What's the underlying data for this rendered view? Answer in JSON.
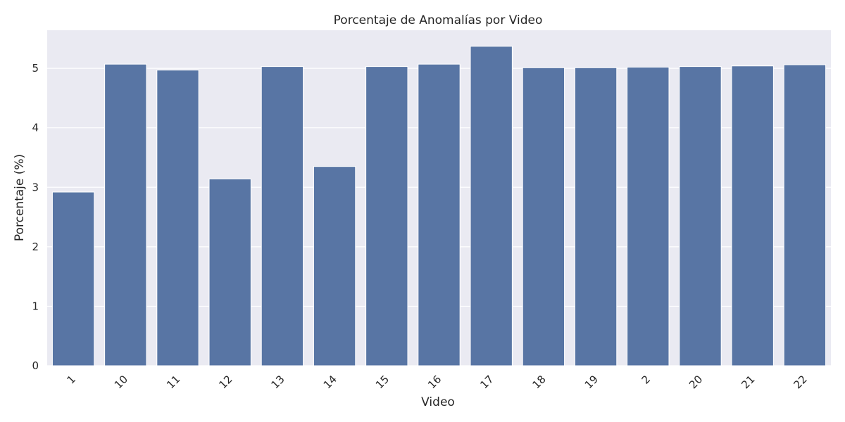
{
  "chart_data": {
    "type": "bar",
    "title": "Porcentaje de Anomalías por Video",
    "xlabel": "Video",
    "ylabel": "Porcentaje (%)",
    "categories": [
      "1",
      "10",
      "11",
      "12",
      "13",
      "14",
      "15",
      "16",
      "17",
      "18",
      "19",
      "2",
      "20",
      "21",
      "22"
    ],
    "values": [
      2.92,
      5.07,
      4.97,
      3.14,
      5.03,
      3.35,
      5.03,
      5.07,
      5.37,
      5.01,
      5.01,
      5.02,
      5.03,
      5.04,
      5.06
    ],
    "ylim": [
      0,
      5.64
    ],
    "yticks": [
      0,
      1,
      2,
      3,
      4,
      5
    ],
    "grid": true,
    "x_tick_rotation_deg": 45,
    "colors": {
      "bar": "#5875a4",
      "background": "#eaeaf2",
      "grid": "#ffffff"
    }
  }
}
